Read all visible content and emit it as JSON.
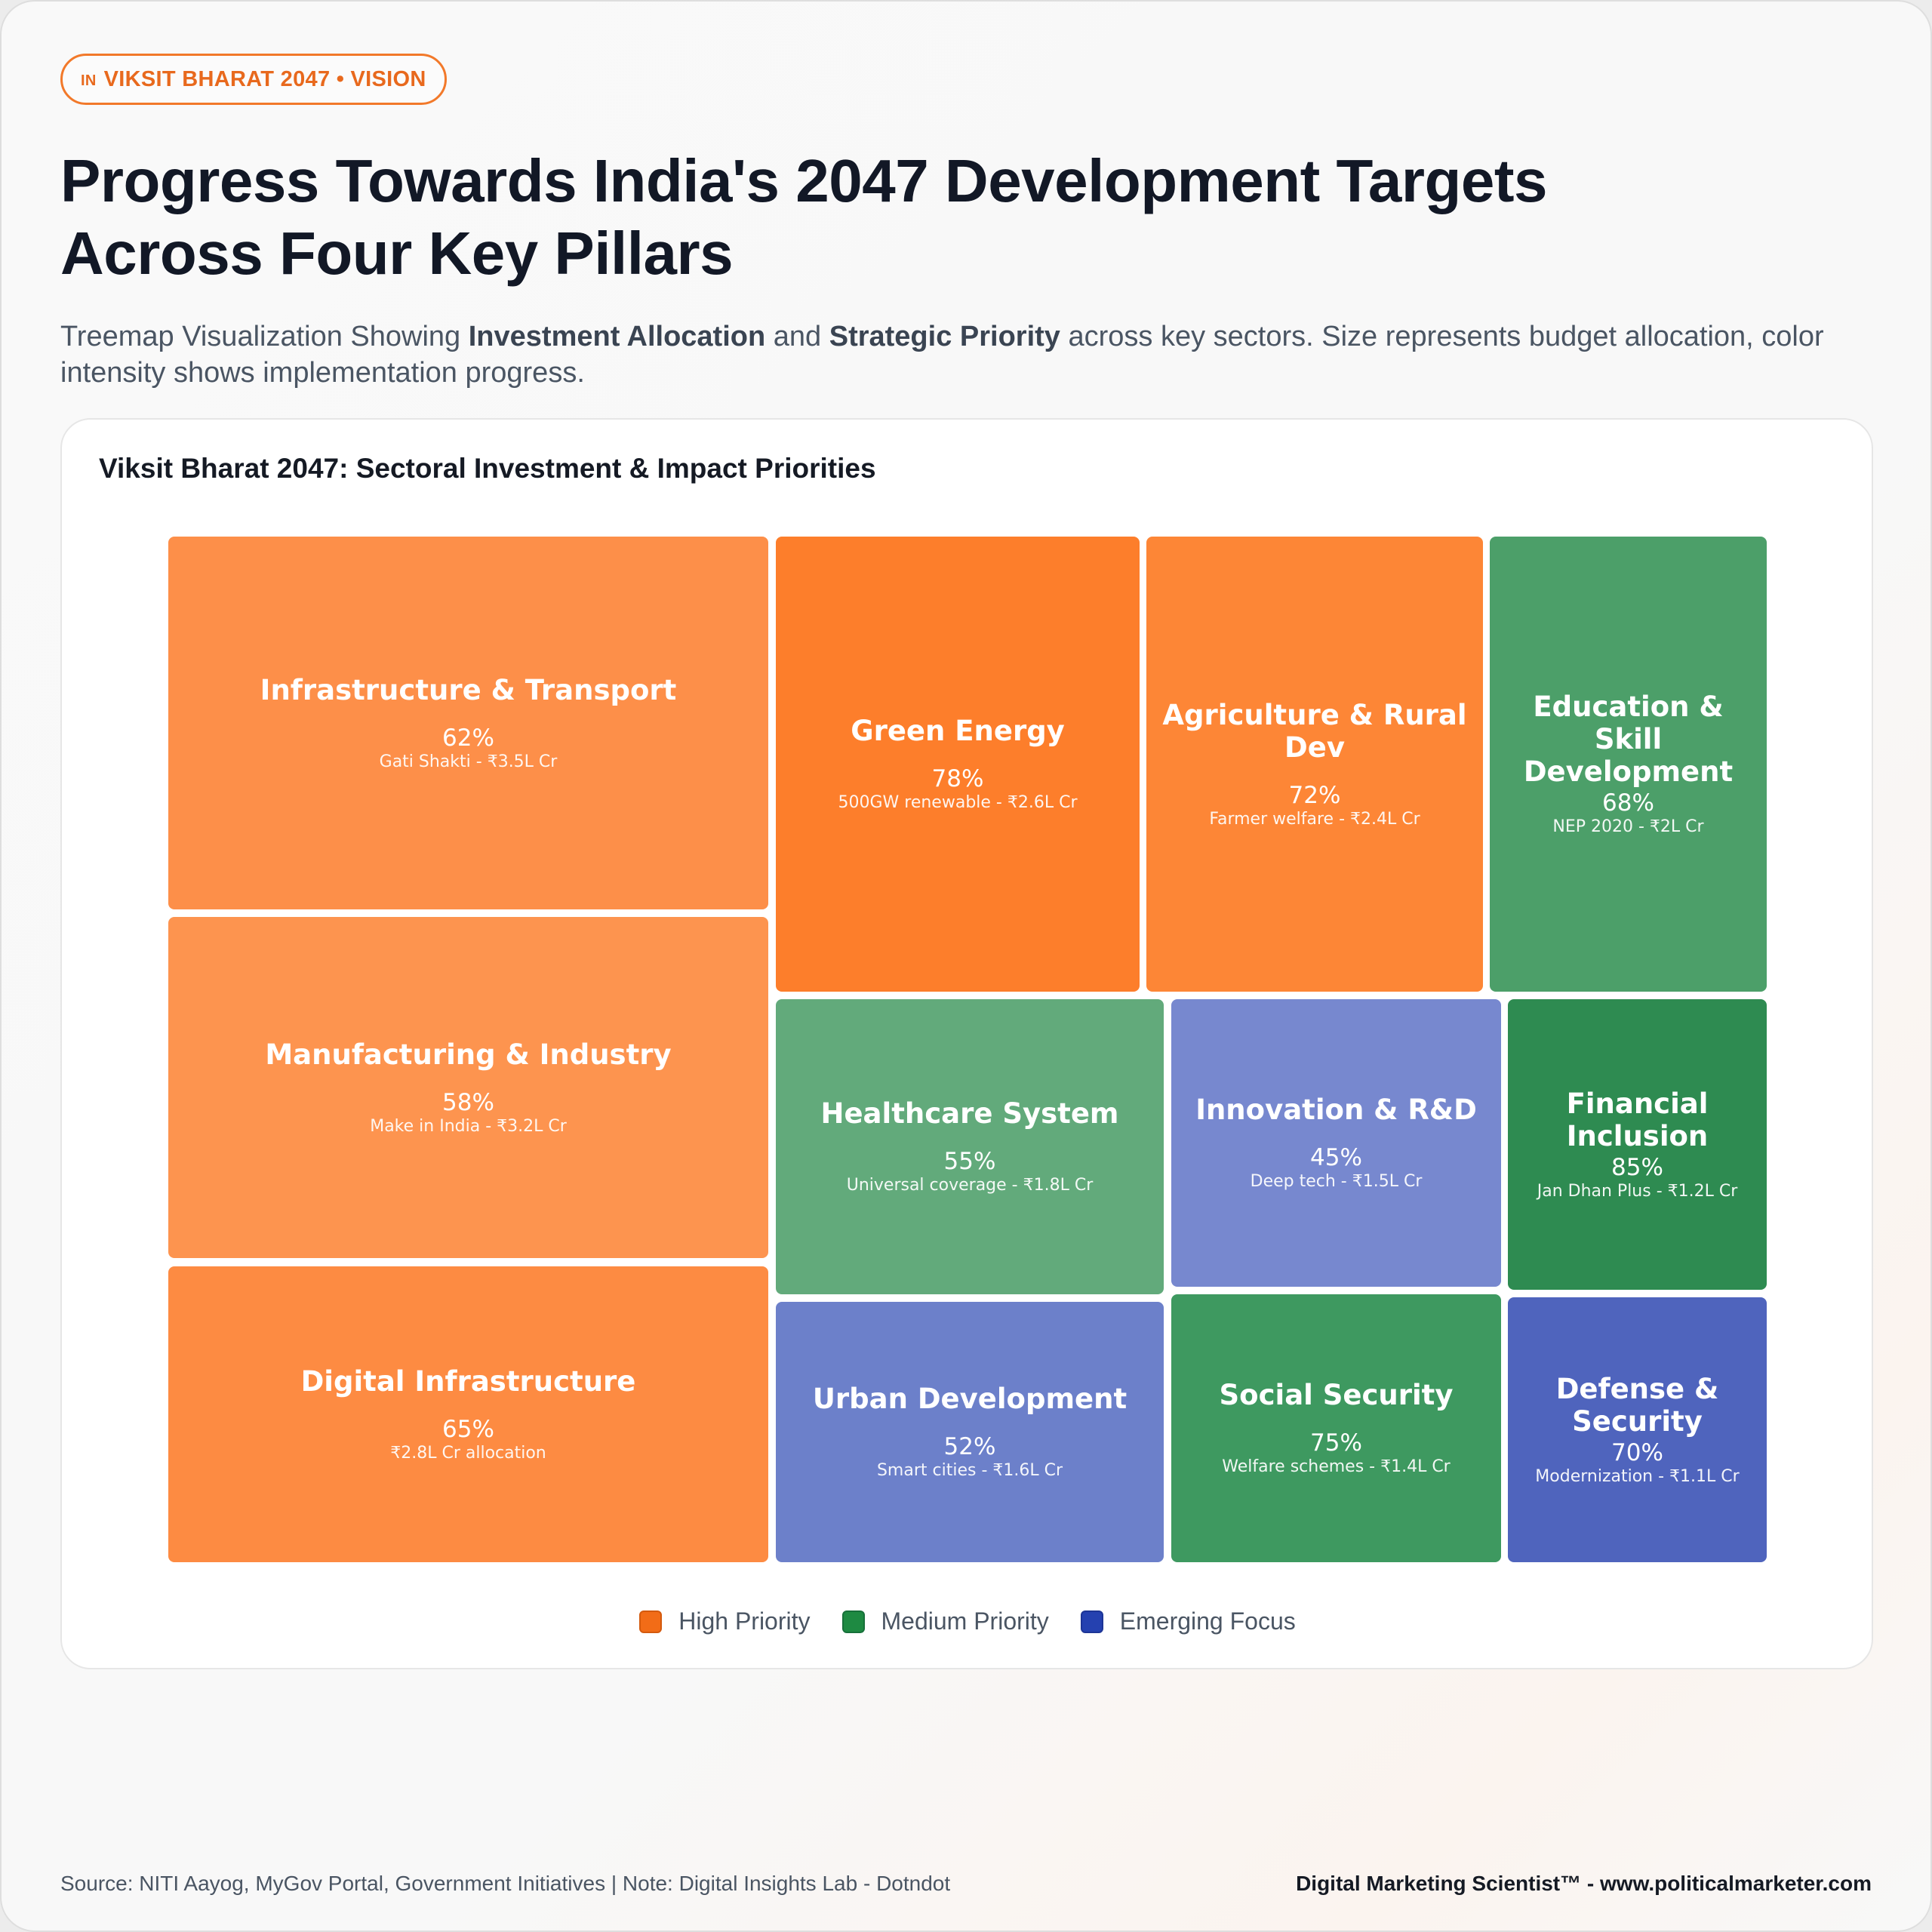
{
  "badge": {
    "flag": "IN",
    "label": "VIKSIT BHARAT 2047 • VISION"
  },
  "header": {
    "title_line1": "Progress Towards India's 2047 Development Targets",
    "title_line2": "Across Four Key Pillars",
    "subtitle": {
      "part1": "Treemap Visualization Showing ",
      "bold1": "Investment Allocation",
      "part2": " and ",
      "bold2": "Strategic Priority",
      "part3": " across key sectors. Size represents budget allocation, color intensity shows implementation progress."
    }
  },
  "chart_data": {
    "type": "treemap",
    "title": "Viksit Bharat 2047: Sectoral Investment & Impact Priorities",
    "items": [
      {
        "name": "Infrastructure & Transport",
        "progress": "62%",
        "detail": "Gati Shakti - ₹3.5L Cr",
        "priority": "High Priority",
        "color": "#fd8f49"
      },
      {
        "name": "Manufacturing & Industry",
        "progress": "58%",
        "detail": "Make in India - ₹3.2L Cr",
        "priority": "High Priority",
        "color": "#fd944f"
      },
      {
        "name": "Digital Infrastructure",
        "progress": "65%",
        "detail": "₹2.8L Cr allocation",
        "priority": "High Priority",
        "color": "#fd8b42"
      },
      {
        "name": "Green Energy",
        "progress": "78%",
        "detail": "500GW renewable - ₹2.6L Cr",
        "priority": "High Priority",
        "color": "#fd7e2b"
      },
      {
        "name": "Agriculture & Rural Dev",
        "progress": "72%",
        "detail": "Farmer welfare - ₹2.4L Cr",
        "priority": "High Priority",
        "color": "#fd8636"
      },
      {
        "name": "Education & Skill Development",
        "progress": "68%",
        "detail": "NEP 2020 - ₹2L Cr",
        "priority": "Medium Priority",
        "color": "#4c9f69"
      },
      {
        "name": "Healthcare System",
        "progress": "55%",
        "detail": "Universal coverage - ₹1.8L Cr",
        "priority": "Medium Priority",
        "color": "#62aa7b"
      },
      {
        "name": "Innovation & R&D",
        "progress": "45%",
        "detail": "Deep tech - ₹1.5L Cr",
        "priority": "Emerging Focus",
        "color": "#7788cf"
      },
      {
        "name": "Financial Inclusion",
        "progress": "85%",
        "detail": "Jan Dhan Plus - ₹1.2L Cr",
        "priority": "Medium Priority",
        "color": "#2e8b51"
      },
      {
        "name": "Urban Development",
        "progress": "52%",
        "detail": "Smart cities - ₹1.6L Cr",
        "priority": "Emerging Focus",
        "color": "#6c80ca"
      },
      {
        "name": "Social Security",
        "progress": "75%",
        "detail": "Welfare schemes - ₹1.4L Cr",
        "priority": "Medium Priority",
        "color": "#3e9960"
      },
      {
        "name": "Defense & Security",
        "progress": "70%",
        "detail": "Modernization - ₹1.1L Cr",
        "priority": "Emerging Focus",
        "color": "#4f64bd"
      }
    ],
    "legend": [
      {
        "label": "High Priority",
        "color": "#f26c17",
        "border": "#d45a0e"
      },
      {
        "label": "Medium Priority",
        "color": "#1e8a42",
        "border": "#17703a"
      },
      {
        "label": "Emerging Focus",
        "color": "#2541b0",
        "border": "#1d3596"
      }
    ]
  },
  "footer": {
    "source": "Source: NITI Aayog, MyGov Portal, Government Initiatives | Note: Digital Insights Lab - Dotndot",
    "brand": "Digital Marketing Scientist™ - www.politicalmarketer.com"
  }
}
